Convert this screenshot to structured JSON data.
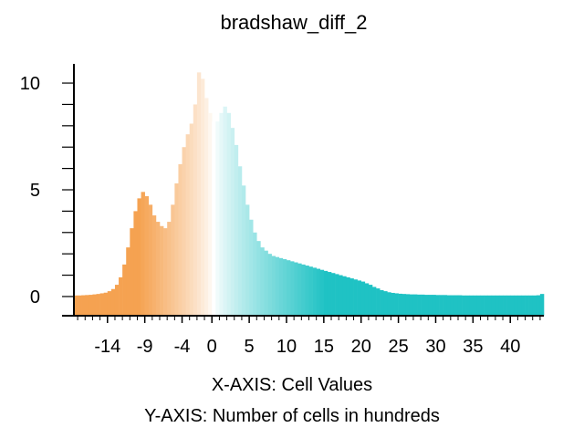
{
  "chart_data": {
    "type": "bar",
    "title": "bradshaw_diff_2",
    "xlabel": "X-AXIS: Cell Values",
    "ylabel": "Y-AXIS: Number of cells in hundreds",
    "x_ticks": [
      "-14",
      "-9",
      "-4",
      "0",
      "5",
      "10",
      "15",
      "20",
      "25",
      "30",
      "35",
      "40"
    ],
    "y_ticks": [
      "0",
      "5",
      "10"
    ],
    "xlim": [
      -18.5,
      44.5
    ],
    "ylim": [
      -0.9,
      10.9
    ],
    "bin_width": 0.5,
    "grid": false,
    "colors": {
      "negative": "#f5a251",
      "zero": "#ffffff",
      "positive": "#1fc2c4",
      "axis": "#000000"
    },
    "bins": [
      {
        "x": -18.5,
        "y": 0.05
      },
      {
        "x": -18.0,
        "y": 0.05
      },
      {
        "x": -17.5,
        "y": 0.06
      },
      {
        "x": -17.0,
        "y": 0.07
      },
      {
        "x": -16.5,
        "y": 0.08
      },
      {
        "x": -16.0,
        "y": 0.1
      },
      {
        "x": -15.5,
        "y": 0.12
      },
      {
        "x": -15.0,
        "y": 0.15
      },
      {
        "x": -14.5,
        "y": 0.18
      },
      {
        "x": -14.0,
        "y": 0.25
      },
      {
        "x": -13.5,
        "y": 0.35
      },
      {
        "x": -13.0,
        "y": 0.55
      },
      {
        "x": -12.5,
        "y": 0.9
      },
      {
        "x": -12.0,
        "y": 1.5
      },
      {
        "x": -11.5,
        "y": 2.3
      },
      {
        "x": -11.0,
        "y": 3.2
      },
      {
        "x": -10.5,
        "y": 4.0
      },
      {
        "x": -10.0,
        "y": 4.6
      },
      {
        "x": -9.5,
        "y": 4.9
      },
      {
        "x": -9.0,
        "y": 4.7
      },
      {
        "x": -8.5,
        "y": 4.3
      },
      {
        "x": -8.0,
        "y": 3.8
      },
      {
        "x": -7.5,
        "y": 3.5
      },
      {
        "x": -7.0,
        "y": 3.3
      },
      {
        "x": -6.5,
        "y": 3.2
      },
      {
        "x": -6.0,
        "y": 3.5
      },
      {
        "x": -5.5,
        "y": 4.3
      },
      {
        "x": -5.0,
        "y": 5.3
      },
      {
        "x": -4.5,
        "y": 6.2
      },
      {
        "x": -4.0,
        "y": 7.0
      },
      {
        "x": -3.5,
        "y": 7.6
      },
      {
        "x": -3.0,
        "y": 8.1
      },
      {
        "x": -2.5,
        "y": 9.0
      },
      {
        "x": -2.0,
        "y": 10.5
      },
      {
        "x": -1.5,
        "y": 10.2
      },
      {
        "x": -1.0,
        "y": 9.3
      },
      {
        "x": -0.5,
        "y": 8.6
      },
      {
        "x": 0.0,
        "y": 8.2
      },
      {
        "x": 0.5,
        "y": 8.2
      },
      {
        "x": 1.0,
        "y": 8.6
      },
      {
        "x": 1.5,
        "y": 8.9
      },
      {
        "x": 2.0,
        "y": 8.6
      },
      {
        "x": 2.5,
        "y": 7.9
      },
      {
        "x": 3.0,
        "y": 7.1
      },
      {
        "x": 3.5,
        "y": 6.1
      },
      {
        "x": 4.0,
        "y": 5.2
      },
      {
        "x": 4.5,
        "y": 4.3
      },
      {
        "x": 5.0,
        "y": 3.6
      },
      {
        "x": 5.5,
        "y": 3.0
      },
      {
        "x": 6.0,
        "y": 2.6
      },
      {
        "x": 6.5,
        "y": 2.3
      },
      {
        "x": 7.0,
        "y": 2.15
      },
      {
        "x": 7.5,
        "y": 2.0
      },
      {
        "x": 8.0,
        "y": 1.9
      },
      {
        "x": 8.5,
        "y": 1.85
      },
      {
        "x": 9.0,
        "y": 1.8
      },
      {
        "x": 9.5,
        "y": 1.75
      },
      {
        "x": 10.0,
        "y": 1.7
      },
      {
        "x": 10.5,
        "y": 1.65
      },
      {
        "x": 11.0,
        "y": 1.6
      },
      {
        "x": 11.5,
        "y": 1.55
      },
      {
        "x": 12.0,
        "y": 1.5
      },
      {
        "x": 12.5,
        "y": 1.45
      },
      {
        "x": 13.0,
        "y": 1.4
      },
      {
        "x": 13.5,
        "y": 1.35
      },
      {
        "x": 14.0,
        "y": 1.3
      },
      {
        "x": 14.5,
        "y": 1.25
      },
      {
        "x": 15.0,
        "y": 1.2
      },
      {
        "x": 15.5,
        "y": 1.15
      },
      {
        "x": 16.0,
        "y": 1.1
      },
      {
        "x": 16.5,
        "y": 1.05
      },
      {
        "x": 17.0,
        "y": 1.0
      },
      {
        "x": 17.5,
        "y": 0.95
      },
      {
        "x": 18.0,
        "y": 0.9
      },
      {
        "x": 18.5,
        "y": 0.85
      },
      {
        "x": 19.0,
        "y": 0.8
      },
      {
        "x": 19.5,
        "y": 0.75
      },
      {
        "x": 20.0,
        "y": 0.7
      },
      {
        "x": 20.5,
        "y": 0.62
      },
      {
        "x": 21.0,
        "y": 0.55
      },
      {
        "x": 21.5,
        "y": 0.45
      },
      {
        "x": 22.0,
        "y": 0.38
      },
      {
        "x": 22.5,
        "y": 0.3
      },
      {
        "x": 23.0,
        "y": 0.25
      },
      {
        "x": 23.5,
        "y": 0.2
      },
      {
        "x": 24.0,
        "y": 0.17
      },
      {
        "x": 24.5,
        "y": 0.15
      },
      {
        "x": 25.0,
        "y": 0.13
      },
      {
        "x": 25.5,
        "y": 0.12
      },
      {
        "x": 26.0,
        "y": 0.11
      },
      {
        "x": 26.5,
        "y": 0.1
      },
      {
        "x": 27.0,
        "y": 0.1
      },
      {
        "x": 27.5,
        "y": 0.09
      },
      {
        "x": 28.0,
        "y": 0.09
      },
      {
        "x": 28.5,
        "y": 0.08
      },
      {
        "x": 29.0,
        "y": 0.08
      },
      {
        "x": 29.5,
        "y": 0.08
      },
      {
        "x": 30.0,
        "y": 0.07
      },
      {
        "x": 30.5,
        "y": 0.07
      },
      {
        "x": 31.0,
        "y": 0.07
      },
      {
        "x": 31.5,
        "y": 0.06
      },
      {
        "x": 32.0,
        "y": 0.06
      },
      {
        "x": 32.5,
        "y": 0.06
      },
      {
        "x": 33.0,
        "y": 0.06
      },
      {
        "x": 33.5,
        "y": 0.05
      },
      {
        "x": 34.0,
        "y": 0.05
      },
      {
        "x": 34.5,
        "y": 0.05
      },
      {
        "x": 35.0,
        "y": 0.05
      },
      {
        "x": 35.5,
        "y": 0.05
      },
      {
        "x": 36.0,
        "y": 0.05
      },
      {
        "x": 36.5,
        "y": 0.05
      },
      {
        "x": 37.0,
        "y": 0.05
      },
      {
        "x": 37.5,
        "y": 0.05
      },
      {
        "x": 38.0,
        "y": 0.05
      },
      {
        "x": 38.5,
        "y": 0.05
      },
      {
        "x": 39.0,
        "y": 0.05
      },
      {
        "x": 39.5,
        "y": 0.05
      },
      {
        "x": 40.0,
        "y": 0.05
      },
      {
        "x": 40.5,
        "y": 0.05
      },
      {
        "x": 41.0,
        "y": 0.05
      },
      {
        "x": 41.5,
        "y": 0.05
      },
      {
        "x": 42.0,
        "y": 0.05
      },
      {
        "x": 42.5,
        "y": 0.05
      },
      {
        "x": 43.0,
        "y": 0.05
      },
      {
        "x": 43.5,
        "y": 0.06
      },
      {
        "x": 44.0,
        "y": 0.12
      }
    ]
  }
}
